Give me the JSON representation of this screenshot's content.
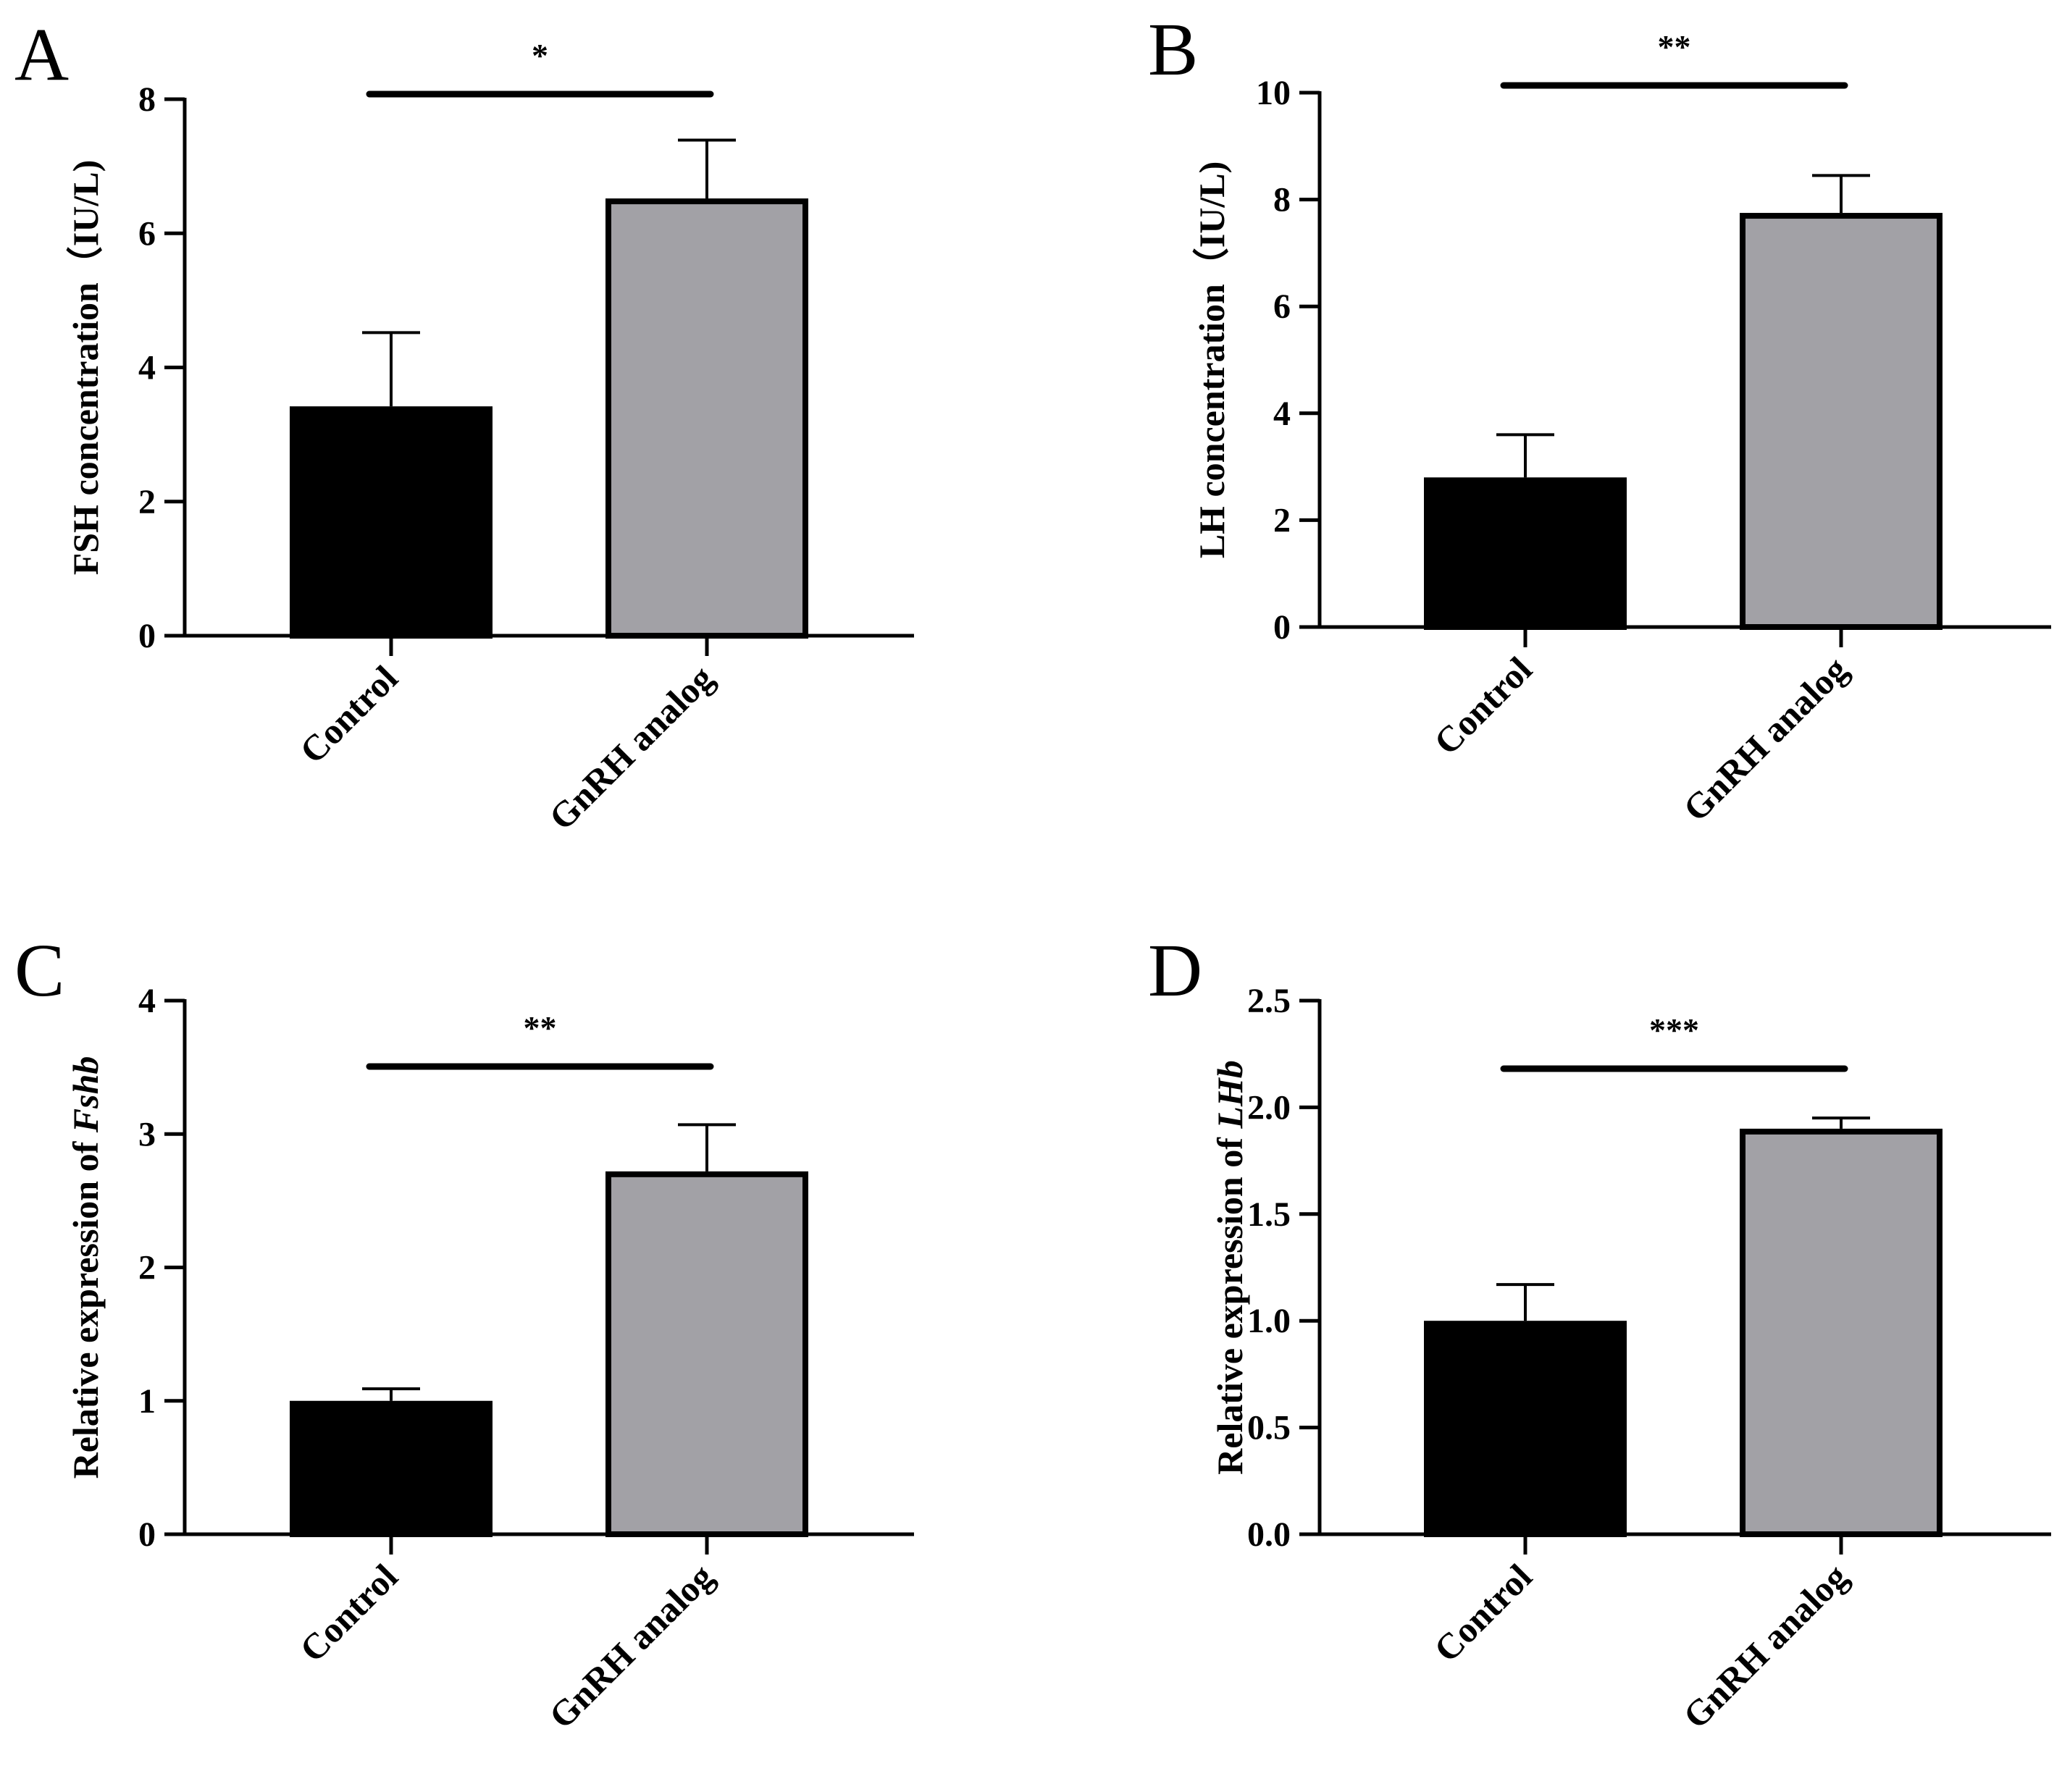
{
  "chart_data": [
    {
      "type": "bar",
      "panel": "A",
      "categories": [
        "Control",
        "GnRH analog"
      ],
      "values": [
        3.42,
        6.52
      ],
      "errors": [
        1.1,
        0.87
      ],
      "colors": [
        "#000000",
        "#a2a1a6"
      ],
      "ylabel": "FSH concentration（IU/L)",
      "ylabel_italic": "",
      "xlabel": "",
      "ylim": [
        0,
        8
      ],
      "yticks": [
        0,
        2,
        4,
        6,
        8
      ],
      "ytick_labels": [
        "0",
        "2",
        "4",
        "6",
        "8"
      ],
      "significance": "*"
    },
    {
      "type": "bar",
      "panel": "B",
      "categories": [
        "Control",
        "GnRH analog"
      ],
      "values": [
        2.8,
        7.75
      ],
      "errors": [
        0.8,
        0.7
      ],
      "colors": [
        "#000000",
        "#a2a1a6"
      ],
      "ylabel": "LH concentration（IU/L)",
      "ylabel_italic": "",
      "xlabel": "",
      "ylim": [
        0,
        10
      ],
      "yticks": [
        0,
        2,
        4,
        6,
        8,
        10
      ],
      "ytick_labels": [
        "0",
        "2",
        "4",
        "6",
        "8",
        "10"
      ],
      "significance": "**"
    },
    {
      "type": "bar",
      "panel": "C",
      "categories": [
        "Control",
        "GnRH analog"
      ],
      "values": [
        1.0,
        2.72
      ],
      "errors": [
        0.09,
        0.35
      ],
      "colors": [
        "#000000",
        "#a2a1a6"
      ],
      "ylabel": "Relative expression of ",
      "ylabel_italic": "Fshb",
      "xlabel": "",
      "ylim": [
        0,
        4
      ],
      "yticks": [
        0,
        1,
        2,
        3,
        4
      ],
      "ytick_labels": [
        "0",
        "1",
        "2",
        "3",
        "4"
      ],
      "significance": "**"
    },
    {
      "type": "bar",
      "panel": "D",
      "categories": [
        "Control",
        "GnRH analog"
      ],
      "values": [
        1.0,
        1.9
      ],
      "errors": [
        0.17,
        0.05
      ],
      "colors": [
        "#000000",
        "#a2a1a6"
      ],
      "ylabel": "Relative expression of ",
      "ylabel_italic": "LHb",
      "xlabel": "",
      "ylim": [
        0,
        2.5
      ],
      "yticks": [
        0,
        0.5,
        1.0,
        1.5,
        2.0,
        2.5
      ],
      "ytick_labels": [
        "0.0",
        "0.5",
        "1.0",
        "1.5",
        "2.0",
        "2.5"
      ],
      "significance": "***"
    }
  ]
}
